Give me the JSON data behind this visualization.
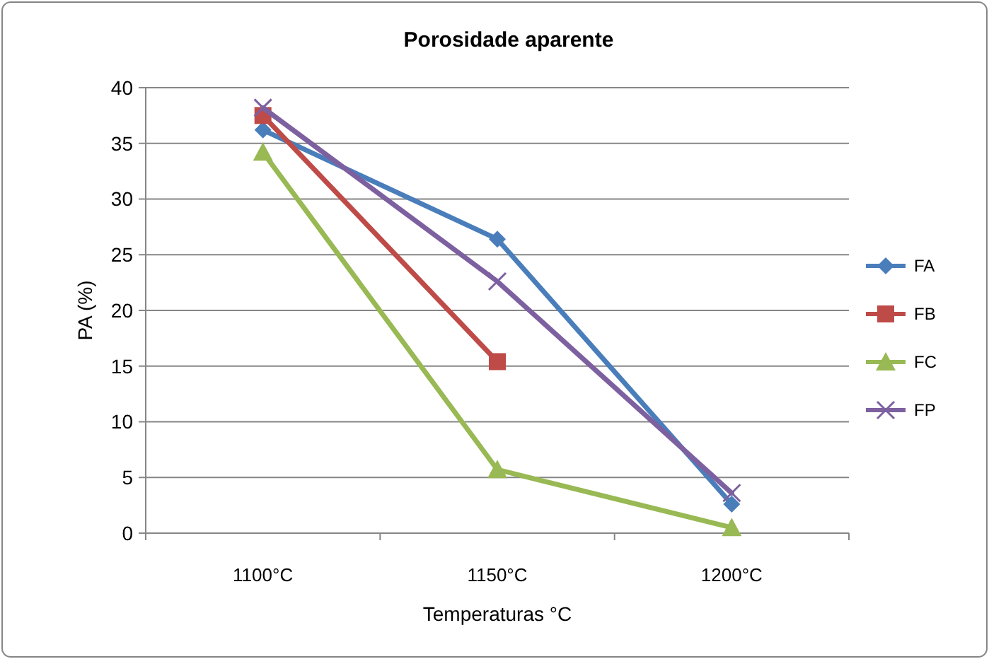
{
  "chart_data": {
    "type": "line",
    "title": "Porosidade aparente",
    "xlabel": "Temperaturas °C",
    "ylabel": "PA (%)",
    "categories": [
      "1100°C",
      "1150°C",
      "1200°C"
    ],
    "series": [
      {
        "name": "FA",
        "color": "#4a7ebb",
        "marker": "diamond",
        "values": [
          36.2,
          26.4,
          2.6
        ]
      },
      {
        "name": "FB",
        "color": "#be4b48",
        "marker": "square",
        "values": [
          37.5,
          15.4,
          null
        ]
      },
      {
        "name": "FC",
        "color": "#98b954",
        "marker": "triangle",
        "values": [
          34.2,
          5.7,
          0.5
        ]
      },
      {
        "name": "FP",
        "color": "#7d60a0",
        "marker": "cross",
        "values": [
          38.2,
          22.6,
          3.6
        ]
      }
    ],
    "ylim": [
      0,
      40
    ],
    "yticks": [
      0,
      5,
      10,
      15,
      20,
      25,
      30,
      35,
      40
    ],
    "grid": "y",
    "legend": "right",
    "line_style": "solid"
  }
}
